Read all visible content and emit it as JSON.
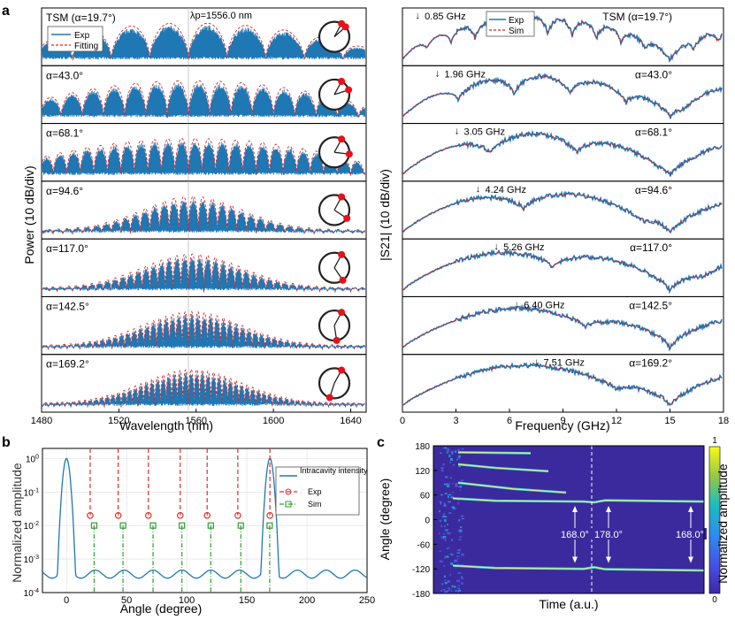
{
  "panel_labels": {
    "a": "a",
    "b": "b",
    "c": "c"
  },
  "chart_data": [
    {
      "type": "line",
      "panel": "a-left",
      "xlabel": "Wavelength (nm)",
      "ylabel": "Power (10 dB/div)",
      "xlim": [
        1480,
        1648
      ],
      "x_ticks": [
        1480,
        1520,
        1560,
        1600,
        1640
      ],
      "pump_label": "λp=1556.0 nm",
      "pump_wavelength": 1556.0,
      "legend": {
        "placement": "top-left",
        "entries": [
          "Exp",
          "Fitting"
        ]
      },
      "colors": {
        "exp": "#1f77b4",
        "fit": "#d62728"
      },
      "rows": [
        {
          "label": "TSM (α=19.7°)",
          "alpha": 19.7,
          "spacing_nm": 20,
          "envelope": "flat"
        },
        {
          "label": "α=43.0°",
          "alpha": 43.0,
          "spacing_nm": 11,
          "envelope": "flat"
        },
        {
          "label": "α=68.1°",
          "alpha": 68.1,
          "spacing_nm": 7,
          "envelope": "flat"
        },
        {
          "label": "α=94.6°",
          "alpha": 94.6,
          "spacing_nm": 5,
          "envelope": "gauss"
        },
        {
          "label": "α=117.0°",
          "alpha": 117.0,
          "spacing_nm": 4,
          "envelope": "gauss"
        },
        {
          "label": "α=142.5°",
          "alpha": 142.5,
          "spacing_nm": 3.3,
          "envelope": "gauss"
        },
        {
          "label": "α=169.2°",
          "alpha": 169.2,
          "spacing_nm": 2.9,
          "envelope": "gauss"
        }
      ]
    },
    {
      "type": "line",
      "panel": "a-right",
      "xlabel": "Frequency (GHz)",
      "ylabel": "|S21| (10 dB/div)",
      "xlim": [
        0,
        18
      ],
      "x_ticks": [
        0,
        3,
        6,
        9,
        12,
        15,
        18
      ],
      "legend": {
        "placement": "top-center",
        "entries": [
          "Exp",
          "Sim"
        ]
      },
      "colors": {
        "exp": "#1f77b4",
        "sim": "#d62728"
      },
      "rows": [
        {
          "label": "TSM (α=19.7°)",
          "marker": "0.85 GHz",
          "marker_ghz": 0.85
        },
        {
          "label": "α=43.0°",
          "marker": "1.96 GHz",
          "marker_ghz": 1.96
        },
        {
          "label": "α=68.1°",
          "marker": "3.05 GHz",
          "marker_ghz": 3.05
        },
        {
          "label": "α=94.6°",
          "marker": "4.24 GHz",
          "marker_ghz": 4.24
        },
        {
          "label": "α=117.0°",
          "marker": "5.26 GHz",
          "marker_ghz": 5.26
        },
        {
          "label": "α=142.5°",
          "marker": "6.40 GHz",
          "marker_ghz": 6.4
        },
        {
          "label": "α=169.2°",
          "marker": "7.51 GHz",
          "marker_ghz": 7.51
        }
      ]
    },
    {
      "type": "line",
      "panel": "b",
      "xlabel": "Angle (degree)",
      "ylabel": "Normalized amplitude",
      "xlim": [
        -20,
        250
      ],
      "ylim_log10": [
        -4,
        0.3
      ],
      "x_ticks": [
        0,
        50,
        100,
        150,
        200,
        250
      ],
      "y_ticks": [
        {
          "v": -4,
          "m": "10",
          "e": "-4"
        },
        {
          "v": -3,
          "m": "10",
          "e": "-3"
        },
        {
          "v": -2,
          "m": "10",
          "e": "-2"
        },
        {
          "v": -1,
          "m": "10",
          "e": "-1"
        },
        {
          "v": 0,
          "m": "10",
          "e": "0"
        }
      ],
      "legend": {
        "placement": "right",
        "entries": [
          "Intracavity intensity",
          "Exp",
          "Sim"
        ]
      },
      "intracavity_peaks": [
        0,
        169.2
      ],
      "exp_points": {
        "x": [
          19.7,
          43.0,
          68.1,
          94.6,
          117.0,
          142.5,
          169.2
        ],
        "y": 0.02
      },
      "sim_points": {
        "x": [
          23,
          47,
          72,
          96,
          120,
          145,
          169
        ],
        "y": 0.01
      },
      "colors": {
        "line": "#1f77b4",
        "exp": "#e0302a",
        "sim": "#2ca02c"
      }
    },
    {
      "type": "heatmap",
      "panel": "c",
      "xlabel": "Time (a.u.)",
      "ylabel": "Angle (degree)",
      "ylim": [
        -180,
        180
      ],
      "y_ticks": [
        180,
        120,
        60,
        0,
        -60,
        -120,
        -180
      ],
      "colorbar": {
        "label": "Normalized amplitude",
        "min": "0",
        "max": "1"
      },
      "annotations": [
        "168.0°",
        "178.0°",
        "168.0°"
      ]
    }
  ]
}
